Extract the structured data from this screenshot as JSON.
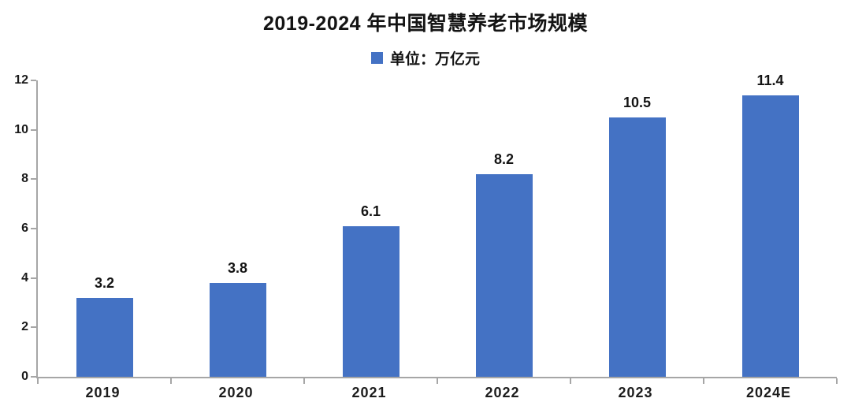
{
  "chart": {
    "title": "2019-2024 年中国智慧养老市场规模",
    "legend_label": "单位：万亿元"
  },
  "chart_data": {
    "type": "bar",
    "title": "2019-2024 年中国智慧养老市场规模",
    "categories": [
      "2019",
      "2020",
      "2021",
      "2022",
      "2023",
      "2024E"
    ],
    "values": [
      3.2,
      3.8,
      6.1,
      8.2,
      10.5,
      11.4
    ],
    "value_labels": [
      "3.2",
      "3.8",
      "6.1",
      "8.2",
      "10.5",
      "11.4"
    ],
    "legend": [
      "单位：万亿元"
    ],
    "legend_position": "top-center",
    "xlabel": "",
    "ylabel": "",
    "ylim": [
      0,
      12
    ],
    "yticks": [
      0,
      2,
      4,
      6,
      8,
      10,
      12
    ],
    "grid": false,
    "bar_color": "#4472C4",
    "axis_color": "#a6a6a6",
    "text_color": "#141414"
  }
}
